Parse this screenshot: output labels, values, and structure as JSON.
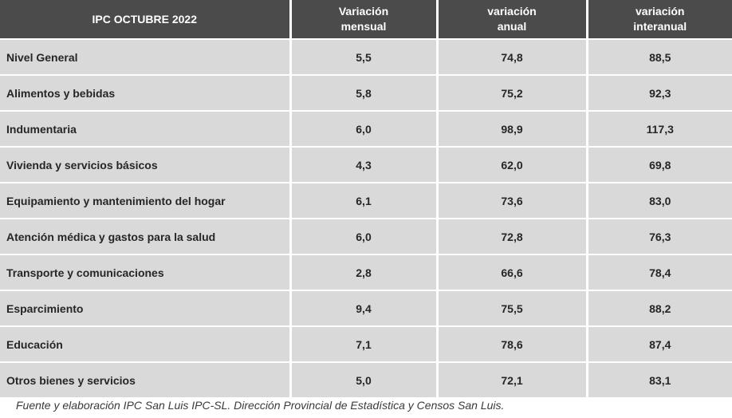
{
  "table": {
    "header": {
      "col0": "IPC OCTUBRE 2022",
      "col1_line1": "Variación",
      "col1_line2": "mensual",
      "col2_line1": "variación",
      "col2_line2": "anual",
      "col3_line1": "variación",
      "col3_line2": "interanual"
    },
    "rows": [
      {
        "label": "Nivel General",
        "mensual": "5,5",
        "anual": "74,8",
        "interanual": "88,5"
      },
      {
        "label": "Alimentos y bebidas",
        "mensual": "5,8",
        "anual": "75,2",
        "interanual": "92,3"
      },
      {
        "label": "Indumentaria",
        "mensual": "6,0",
        "anual": "98,9",
        "interanual": "117,3"
      },
      {
        "label": "Vivienda y servicios básicos",
        "mensual": "4,3",
        "anual": "62,0",
        "interanual": "69,8"
      },
      {
        "label": "Equipamiento y mantenimiento del hogar",
        "mensual": "6,1",
        "anual": "73,6",
        "interanual": "83,0"
      },
      {
        "label": "Atención médica y gastos para la salud",
        "mensual": "6,0",
        "anual": "72,8",
        "interanual": "76,3"
      },
      {
        "label": "Transporte y comunicaciones",
        "mensual": "2,8",
        "anual": "66,6",
        "interanual": "78,4"
      },
      {
        "label": "Esparcimiento",
        "mensual": "9,4",
        "anual": "75,5",
        "interanual": "88,2"
      },
      {
        "label": "Educación",
        "mensual": "7,1",
        "anual": "78,6",
        "interanual": "87,4"
      },
      {
        "label": "Otros bienes y servicios",
        "mensual": "5,0",
        "anual": "72,1",
        "interanual": "83,1"
      }
    ]
  },
  "source": "Fuente y elaboración IPC San Luis IPC-SL. Dirección Provincial de Estadística y Censos San Luis."
}
